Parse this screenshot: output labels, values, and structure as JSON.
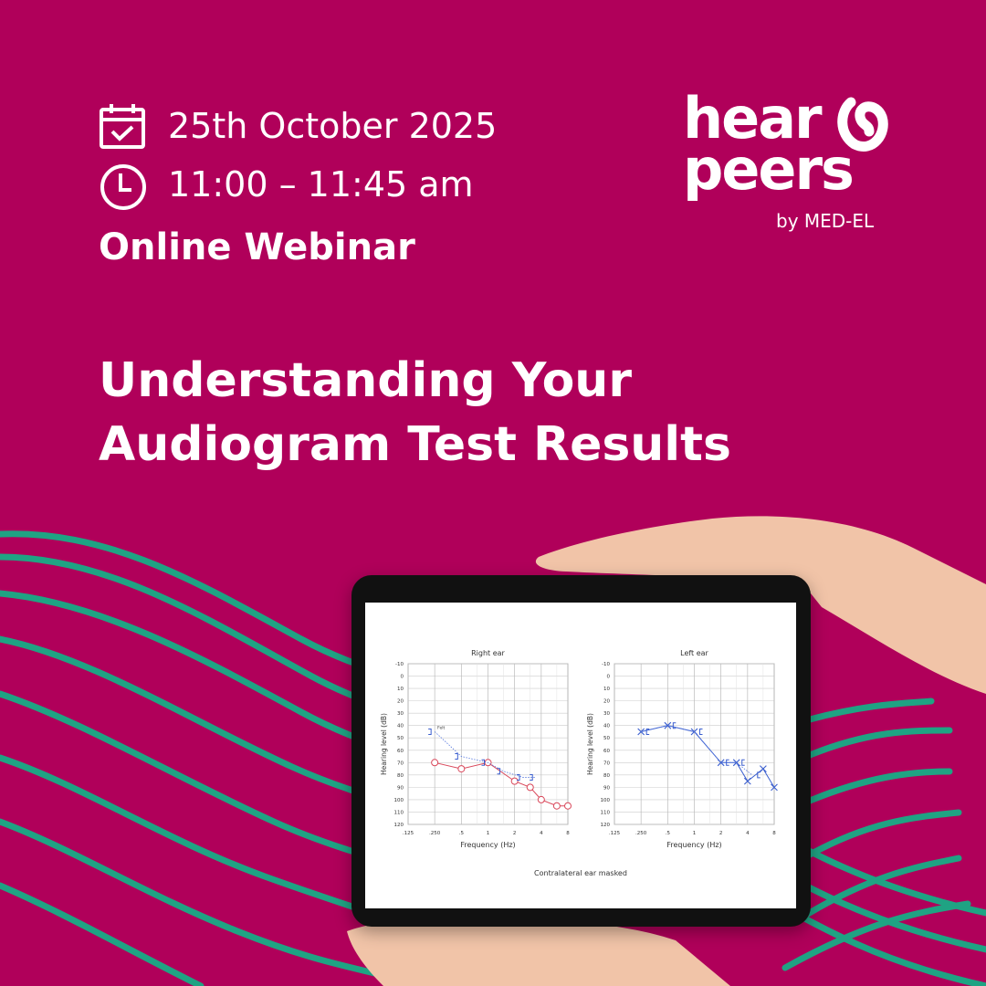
{
  "event": {
    "date": "25th October 2025",
    "time": "11:00 – 11:45 am",
    "format": "Online Webinar",
    "title_line1": "Understanding Your",
    "title_line2": "Audiogram Test Results",
    "icons": [
      "calendar-check-icon",
      "clock-icon"
    ]
  },
  "brand": {
    "logo_line1": "hear",
    "logo_line2": "peers",
    "byline": "by MED-EL"
  },
  "colors": {
    "background": "#b0005a",
    "waves": "#1fa383",
    "right_ear": "#d9475a",
    "left_ear": "#3b5fcf"
  },
  "chart_data": [
    {
      "type": "line",
      "title": "Right ear",
      "xlabel": "Frequency (Hz)",
      "ylabel": "Hearing level (dB)",
      "x_ticks": [
        ".125",
        ".250",
        ".5",
        "1",
        "2",
        "4",
        "8"
      ],
      "y_ticks": [
        -10,
        0,
        10,
        20,
        30,
        40,
        50,
        60,
        70,
        80,
        90,
        100,
        110,
        120
      ],
      "ylim": [
        120,
        -10
      ],
      "x_scale": "log",
      "grid": true,
      "annotation": "Felt",
      "series": [
        {
          "marker": "circle",
          "style": "solid",
          "x": [
            0.25,
            0.5,
            1,
            2,
            3,
            4,
            6,
            8
          ],
          "y": [
            70,
            75,
            70,
            85,
            90,
            100,
            105,
            105
          ]
        },
        {
          "marker": "bracket-right",
          "style": "dotted",
          "x": [
            0.25,
            0.5,
            1,
            1.5,
            2.5,
            3.5
          ],
          "y": [
            45,
            65,
            70,
            77,
            82,
            82
          ]
        }
      ]
    },
    {
      "type": "line",
      "title": "Left ear",
      "xlabel": "Frequency (Hz)",
      "ylabel": "Hearing level (dB)",
      "x_ticks": [
        ".125",
        ".250",
        ".5",
        "1",
        "2",
        "4",
        "8"
      ],
      "y_ticks": [
        -10,
        0,
        10,
        20,
        30,
        40,
        50,
        60,
        70,
        80,
        90,
        100,
        110,
        120
      ],
      "ylim": [
        120,
        -10
      ],
      "x_scale": "log",
      "grid": true,
      "series": [
        {
          "marker": "x",
          "style": "solid",
          "x": [
            0.25,
            0.5,
            1,
            2,
            3,
            4,
            6,
            8
          ],
          "y": [
            45,
            40,
            45,
            70,
            70,
            85,
            75,
            90
          ]
        },
        {
          "marker": "bracket-left",
          "style": "dotted",
          "x": [
            0.25,
            0.5,
            1,
            2,
            3,
            4.5
          ],
          "y": [
            45,
            40,
            45,
            70,
            70,
            80
          ]
        }
      ]
    }
  ],
  "footnote": "Contralateral ear masked"
}
